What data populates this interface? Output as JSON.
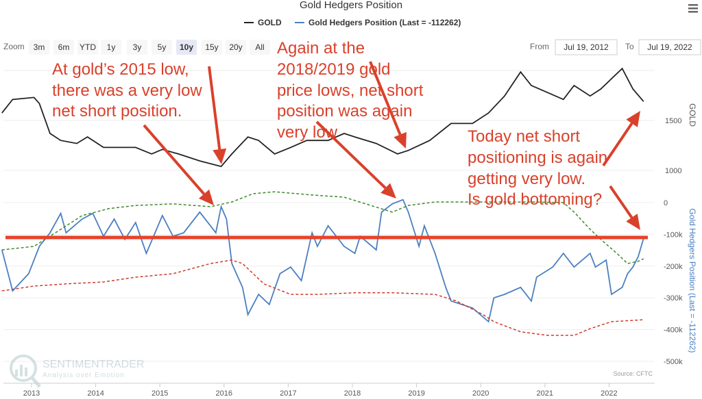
{
  "chart_data": {
    "type": "line",
    "title": "Gold Hedgers Position",
    "legend": {
      "placement": "top-center",
      "items": [
        "GOLD",
        "Gold Hedgers Position (Last = -112262)"
      ]
    },
    "x_ticks": [
      "2013",
      "2014",
      "2015",
      "2016",
      "2017",
      "2018",
      "2019",
      "2020",
      "2021",
      "2022"
    ],
    "x_range": [
      "2012-07-19",
      "2022-07-19"
    ],
    "panels": [
      {
        "ylabel": "GOLD",
        "y_ticks": [
          "1000",
          "1500"
        ],
        "ylim": [
          900,
          2150
        ],
        "series": [
          {
            "name": "GOLD",
            "color": "#222222",
            "style": "solid",
            "points": [
              [
                "2012-07",
                1575
              ],
              [
                "2012-09",
                1710
              ],
              [
                "2013-01",
                1730
              ],
              [
                "2013-02",
                1670
              ],
              [
                "2013-04",
                1370
              ],
              [
                "2013-06",
                1300
              ],
              [
                "2013-09",
                1270
              ],
              [
                "2013-11",
                1335
              ],
              [
                "2014-02",
                1230
              ],
              [
                "2014-06",
                1230
              ],
              [
                "2014-08",
                1230
              ],
              [
                "2014-11",
                1165
              ],
              [
                "2015-01",
                1210
              ],
              [
                "2015-04",
                1165
              ],
              [
                "2015-08",
                1095
              ],
              [
                "2015-12",
                1040
              ],
              [
                "2016-02",
                1165
              ],
              [
                "2016-05",
                1335
              ],
              [
                "2016-07",
                1300
              ],
              [
                "2016-10",
                1165
              ],
              [
                "2017-01",
                1230
              ],
              [
                "2017-04",
                1300
              ],
              [
                "2017-08",
                1300
              ],
              [
                "2017-11",
                1370
              ],
              [
                "2018-01",
                1335
              ],
              [
                "2018-05",
                1270
              ],
              [
                "2018-09",
                1165
              ],
              [
                "2018-11",
                1200
              ],
              [
                "2019-03",
                1300
              ],
              [
                "2019-07",
                1470
              ],
              [
                "2019-11",
                1470
              ],
              [
                "2020-02",
                1575
              ],
              [
                "2020-05",
                1745
              ],
              [
                "2020-08",
                1985
              ],
              [
                "2020-10",
                1850
              ],
              [
                "2021-01",
                1780
              ],
              [
                "2021-04",
                1710
              ],
              [
                "2021-06",
                1850
              ],
              [
                "2021-09",
                1745
              ],
              [
                "2021-11",
                1815
              ],
              [
                "2022-03",
                2020
              ],
              [
                "2022-05",
                1815
              ],
              [
                "2022-07",
                1690
              ]
            ]
          }
        ]
      },
      {
        "ylabel": "Gold Hedgers Position (Last = -112262)",
        "y_ticks": [
          "0",
          "-100k",
          "-200k",
          "-300k",
          "-400k",
          "-500k"
        ],
        "ylim": [
          -500000,
          50000
        ],
        "series": [
          {
            "name": "Gold Hedgers Position (Last = -112262)",
            "color": "#4a7fc1",
            "style": "solid",
            "points": [
              [
                "2012-07",
                -149000
              ],
              [
                "2012-08",
                -213000
              ],
              [
                "2012-09",
                -278000
              ],
              [
                "2012-12",
                -224000
              ],
              [
                "2013-02",
                -138000
              ],
              [
                "2013-04",
                -95000
              ],
              [
                "2013-06",
                -34000
              ],
              [
                "2013-07",
                -95000
              ],
              [
                "2013-10",
                -52000
              ],
              [
                "2013-12",
                -34000
              ],
              [
                "2014-02",
                -106000
              ],
              [
                "2014-04",
                -52000
              ],
              [
                "2014-06",
                -116000
              ],
              [
                "2014-08",
                -63000
              ],
              [
                "2014-10",
                -160000
              ],
              [
                "2015-01",
                -41000
              ],
              [
                "2015-03",
                -106000
              ],
              [
                "2015-05",
                -95000
              ],
              [
                "2015-08",
                -30000
              ],
              [
                "2015-10",
                -73000
              ],
              [
                "2015-11",
                -95000
              ],
              [
                "2015-12",
                -13000
              ],
              [
                "2016-01",
                -52000
              ],
              [
                "2016-02",
                -192000
              ],
              [
                "2016-04",
                -267000
              ],
              [
                "2016-05",
                -353000
              ],
              [
                "2016-07",
                -289000
              ],
              [
                "2016-09",
                -321000
              ],
              [
                "2016-11",
                -224000
              ],
              [
                "2017-01",
                -203000
              ],
              [
                "2017-03",
                -246000
              ],
              [
                "2017-05",
                -95000
              ],
              [
                "2017-06",
                -138000
              ],
              [
                "2017-08",
                -73000
              ],
              [
                "2017-11",
                -138000
              ],
              [
                "2018-01",
                -160000
              ],
              [
                "2018-02",
                -106000
              ],
              [
                "2018-05",
                -149000
              ],
              [
                "2018-06",
                -30000
              ],
              [
                "2018-08",
                -4000
              ],
              [
                "2018-10",
                9000
              ],
              [
                "2018-11",
                -30000
              ],
              [
                "2019-01",
                -138000
              ],
              [
                "2019-02",
                -73000
              ],
              [
                "2019-04",
                -160000
              ],
              [
                "2019-06",
                -267000
              ],
              [
                "2019-07",
                -310000
              ],
              [
                "2019-09",
                -321000
              ],
              [
                "2019-11",
                -332000
              ],
              [
                "2020-02",
                -375000
              ],
              [
                "2020-03",
                -300000
              ],
              [
                "2020-05",
                -289000
              ],
              [
                "2020-08",
                -267000
              ],
              [
                "2020-10",
                -310000
              ],
              [
                "2020-11",
                -235000
              ],
              [
                "2021-02",
                -203000
              ],
              [
                "2021-04",
                -160000
              ],
              [
                "2021-06",
                -203000
              ],
              [
                "2021-09",
                -160000
              ],
              [
                "2021-10",
                -203000
              ],
              [
                "2021-12",
                -181000
              ],
              [
                "2022-01",
                -289000
              ],
              [
                "2022-03",
                -267000
              ],
              [
                "2022-04",
                -224000
              ],
              [
                "2022-05",
                -203000
              ],
              [
                "2022-06",
                -170000
              ],
              [
                "2022-07",
                -112262
              ]
            ]
          },
          {
            "color": "#3d8a2a",
            "style": "dashed",
            "points": [
              [
                "2012-07",
                -149000
              ],
              [
                "2013-01",
                -138000
              ],
              [
                "2013-05",
                -95000
              ],
              [
                "2013-10",
                -41000
              ],
              [
                "2014-03",
                -19000
              ],
              [
                "2014-08",
                -9000
              ],
              [
                "2015-03",
                -4000
              ],
              [
                "2015-10",
                -13000
              ],
              [
                "2016-02",
                2000
              ],
              [
                "2016-06",
                28000
              ],
              [
                "2016-10",
                34000
              ],
              [
                "2017-05",
                24000
              ],
              [
                "2017-11",
                17000
              ],
              [
                "2018-04",
                -9000
              ],
              [
                "2018-08",
                -30000
              ],
              [
                "2018-11",
                -9000
              ],
              [
                "2019-04",
                2000
              ],
              [
                "2020-01",
                2000
              ],
              [
                "2020-10",
                2000
              ],
              [
                "2021-04",
                0
              ],
              [
                "2021-06",
                -30000
              ],
              [
                "2021-09",
                -84000
              ],
              [
                "2021-11",
                -116000
              ],
              [
                "2022-02",
                -160000
              ],
              [
                "2022-04",
                -192000
              ],
              [
                "2022-06",
                -185000
              ],
              [
                "2022-07",
                -177000
              ]
            ]
          },
          {
            "color": "#d0392b",
            "style": "dashed",
            "points": [
              [
                "2012-07",
                -278000
              ],
              [
                "2013-01",
                -263000
              ],
              [
                "2013-07",
                -256000
              ],
              [
                "2014-02",
                -250000
              ],
              [
                "2014-08",
                -235000
              ],
              [
                "2015-03",
                -224000
              ],
              [
                "2015-10",
                -192000
              ],
              [
                "2016-02",
                -181000
              ],
              [
                "2016-04",
                -192000
              ],
              [
                "2016-08",
                -256000
              ],
              [
                "2017-01",
                -289000
              ],
              [
                "2017-06",
                -289000
              ],
              [
                "2018-01",
                -284000
              ],
              [
                "2018-08",
                -284000
              ],
              [
                "2019-04",
                -289000
              ],
              [
                "2019-08",
                -310000
              ],
              [
                "2020-01",
                -353000
              ],
              [
                "2020-03",
                -375000
              ],
              [
                "2020-08",
                -407000
              ],
              [
                "2021-01",
                -418000
              ],
              [
                "2021-06",
                -418000
              ],
              [
                "2021-09",
                -397000
              ],
              [
                "2022-01",
                -375000
              ],
              [
                "2022-05",
                -371000
              ],
              [
                "2022-07",
                -369000
              ]
            ]
          }
        ],
        "reference_line": {
          "value": -110000,
          "color": "#e8412a"
        }
      }
    ],
    "grid": true,
    "source": "Source: CFTC"
  },
  "toolbar": {
    "zoom_label": "Zoom",
    "zoom_options": [
      "3m",
      "6m",
      "YTD",
      "1y",
      "3y",
      "5y",
      "10y",
      "15y",
      "20y",
      "All"
    ],
    "selected_zoom": "10y",
    "from_label": "From",
    "from_value": "Jul 19, 2012",
    "to_label": "To",
    "to_value": "Jul 19, 2022",
    "menu_icon": "hamburger-menu-icon"
  },
  "watermark": {
    "brand": "SENTIMENTRADER",
    "tagline": "Analysis over Emotion"
  },
  "annotations": [
    {
      "lines": [
        "At gold’s 2015 low,",
        "there was a very low",
        "net short position."
      ]
    },
    {
      "lines": [
        "Again at the",
        "2018/2019 gold",
        "price lows, net short",
        "position was again",
        "very low"
      ]
    },
    {
      "lines": [
        "Today net short",
        "positioning is again",
        "getting very low.",
        "Is gold bottoming?"
      ]
    }
  ],
  "colors": {
    "annotation": "#d9412b",
    "gold": "#222222",
    "hedgers": "#4a7fc1"
  }
}
